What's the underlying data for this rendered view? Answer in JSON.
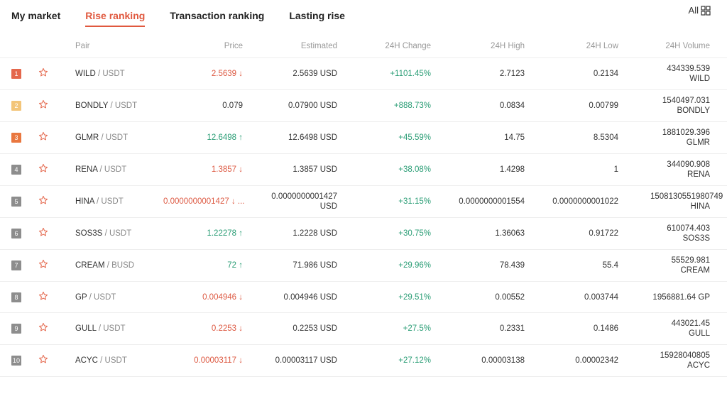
{
  "tabs": [
    "My market",
    "Rise ranking",
    "Transaction ranking",
    "Lasting rise"
  ],
  "active_tab": 1,
  "all_button": "All",
  "table": {
    "headers": [
      "Pair",
      "Price",
      "Estimated",
      "24H Change",
      "24H High",
      "24H Low",
      "24H Volume"
    ],
    "rows": [
      {
        "rank": "1",
        "base": "WILD",
        "quote": "/ USDT",
        "price": "2.5639",
        "arrow": "↓",
        "estimated": "2.5639 USD",
        "change": "+1101.45%",
        "high": "2.7123",
        "low": "0.2134",
        "volume": "434339.539 WILD"
      },
      {
        "rank": "2",
        "base": "BONDLY",
        "quote": "/ USDT",
        "price": "0.079",
        "arrow": "",
        "estimated": "0.07900 USD",
        "change": "+888.73%",
        "high": "0.0834",
        "low": "0.00799",
        "volume": "1540497.031 BONDLY"
      },
      {
        "rank": "3",
        "base": "GLMR",
        "quote": "/ USDT",
        "price": "12.6498",
        "arrow": "↑",
        "estimated": "12.6498 USD",
        "change": "+45.59%",
        "high": "14.75",
        "low": "8.5304",
        "volume": "1881029.396 GLMR"
      },
      {
        "rank": "4",
        "base": "RENA",
        "quote": "/ USDT",
        "price": "1.3857",
        "arrow": "↓",
        "estimated": "1.3857 USD",
        "change": "+38.08%",
        "high": "1.4298",
        "low": "1",
        "volume": "344090.908 RENA"
      },
      {
        "rank": "5",
        "base": "HINA",
        "quote": "/ USDT",
        "price": "0.0000000001427",
        "arrow": "↓ ...",
        "estimated": "0.0000000001427 USD",
        "change": "+31.15%",
        "high": "0.0000000001554",
        "low": "0.0000000001022",
        "volume": "1508130551980749 HINA"
      },
      {
        "rank": "6",
        "base": "SOS3S",
        "quote": "/ USDT",
        "price": "1.22278",
        "arrow": "↑",
        "estimated": "1.2228 USD",
        "change": "+30.75%",
        "high": "1.36063",
        "low": "0.91722",
        "volume": "610074.403 SOS3S"
      },
      {
        "rank": "7",
        "base": "CREAM",
        "quote": "/ BUSD",
        "price": "72",
        "arrow": "↑",
        "estimated": "71.986 USD",
        "change": "+29.96%",
        "high": "78.439",
        "low": "55.4",
        "volume": "55529.981 CREAM"
      },
      {
        "rank": "8",
        "base": "GP",
        "quote": "/ USDT",
        "price": "0.004946",
        "arrow": "↓",
        "estimated": "0.004946 USD",
        "change": "+29.51%",
        "high": "0.00552",
        "low": "0.003744",
        "volume": "1956881.64 GP"
      },
      {
        "rank": "9",
        "base": "GULL",
        "quote": "/ USDT",
        "price": "0.2253",
        "arrow": "↓",
        "estimated": "0.2253 USD",
        "change": "+27.5%",
        "high": "0.2331",
        "low": "0.1486",
        "volume": "443021.45 GULL"
      },
      {
        "rank": "10",
        "base": "ACYC",
        "quote": "/ USDT",
        "price": "0.00003117",
        "arrow": "↓",
        "estimated": "0.00003117 USD",
        "change": "+27.12%",
        "high": "0.00003138",
        "low": "0.00002342",
        "volume": "15928040805 ACYC"
      }
    ]
  }
}
